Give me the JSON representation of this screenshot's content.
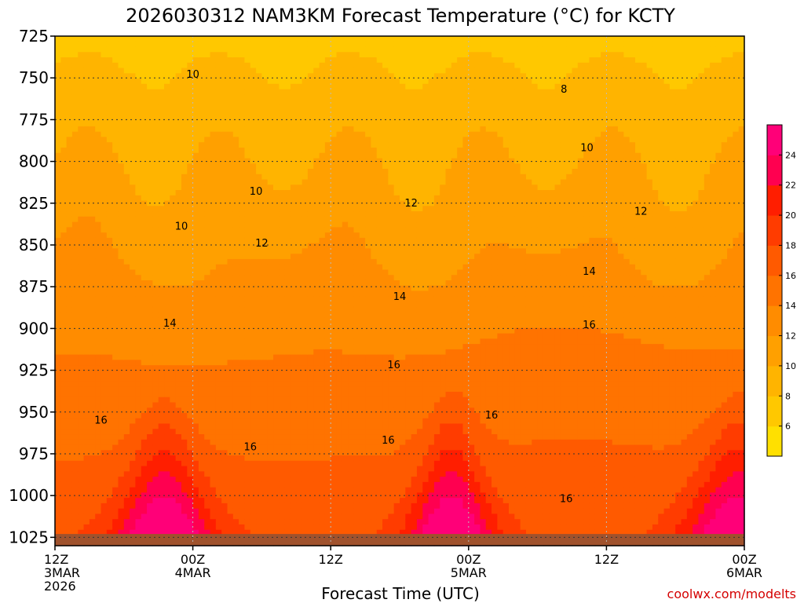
{
  "chart_data": {
    "type": "contour",
    "title": "2026030312 NAM3KM Forecast Temperature (°C) for KCTY",
    "xlabel": "Forecast Time (UTC)",
    "credit": "coolwx.com/modelts",
    "y_axis": {
      "reversed": true,
      "range": [
        725,
        1030
      ],
      "ticks": [
        "725",
        "750",
        "775",
        "800",
        "825",
        "850",
        "875",
        "900",
        "925",
        "950",
        "975",
        "1000",
        "1025"
      ]
    },
    "x_axis": {
      "range_hours": [
        0,
        60
      ],
      "ticks": [
        {
          "hour": 0,
          "lines": [
            "12Z",
            "3MAR",
            "2026"
          ]
        },
        {
          "hour": 12,
          "lines": [
            "00Z",
            "4MAR"
          ]
        },
        {
          "hour": 24,
          "lines": [
            "12Z"
          ]
        },
        {
          "hour": 36,
          "lines": [
            "00Z",
            "5MAR"
          ]
        },
        {
          "hour": 48,
          "lines": [
            "12Z"
          ]
        },
        {
          "hour": 60,
          "lines": [
            "00Z",
            "6MAR"
          ]
        }
      ]
    },
    "colorbar": {
      "levels": [
        4,
        6,
        8,
        10,
        12,
        14,
        16,
        18,
        20,
        22,
        24,
        26
      ],
      "labels": [
        "6",
        "8",
        "10",
        "12",
        "14",
        "16",
        "18",
        "20",
        "22",
        "24"
      ],
      "colors": [
        "#ffe000",
        "#ffc800",
        "#ffb400",
        "#ffa000",
        "#ff8c00",
        "#ff7300",
        "#ff5a00",
        "#ff3c00",
        "#ff1e00",
        "#ff0050",
        "#ff0078"
      ]
    },
    "contour_labels": [
      {
        "text": "10",
        "hour": 12.0,
        "p": 748
      },
      {
        "text": "10",
        "hour": 17.5,
        "p": 818
      },
      {
        "text": "10",
        "hour": 11.0,
        "p": 839
      },
      {
        "text": "10",
        "hour": 46.3,
        "p": 792
      },
      {
        "text": "8",
        "hour": 44.3,
        "p": 757
      },
      {
        "text": "12",
        "hour": 18.0,
        "p": 849
      },
      {
        "text": "12",
        "hour": 31.0,
        "p": 825
      },
      {
        "text": "12",
        "hour": 51.0,
        "p": 830
      },
      {
        "text": "14",
        "hour": 10.0,
        "p": 897
      },
      {
        "text": "14",
        "hour": 30.0,
        "p": 881
      },
      {
        "text": "14",
        "hour": 46.5,
        "p": 866
      },
      {
        "text": "16",
        "hour": 4.0,
        "p": 955
      },
      {
        "text": "16",
        "hour": 17.0,
        "p": 971
      },
      {
        "text": "16",
        "hour": 29.5,
        "p": 922
      },
      {
        "text": "16",
        "hour": 29.0,
        "p": 967
      },
      {
        "text": "16",
        "hour": 38.0,
        "p": 952
      },
      {
        "text": "16",
        "hour": 46.5,
        "p": 898
      },
      {
        "text": "16",
        "hour": 44.5,
        "p": 1002
      }
    ],
    "warm_cores": [
      {
        "center_hour": 9.5,
        "half_width_hours": 4.5
      },
      {
        "center_hour": 34.5,
        "half_width_hours": 4.0
      },
      {
        "center_hour": 59.5,
        "half_width_hours": 5.0
      }
    ]
  }
}
